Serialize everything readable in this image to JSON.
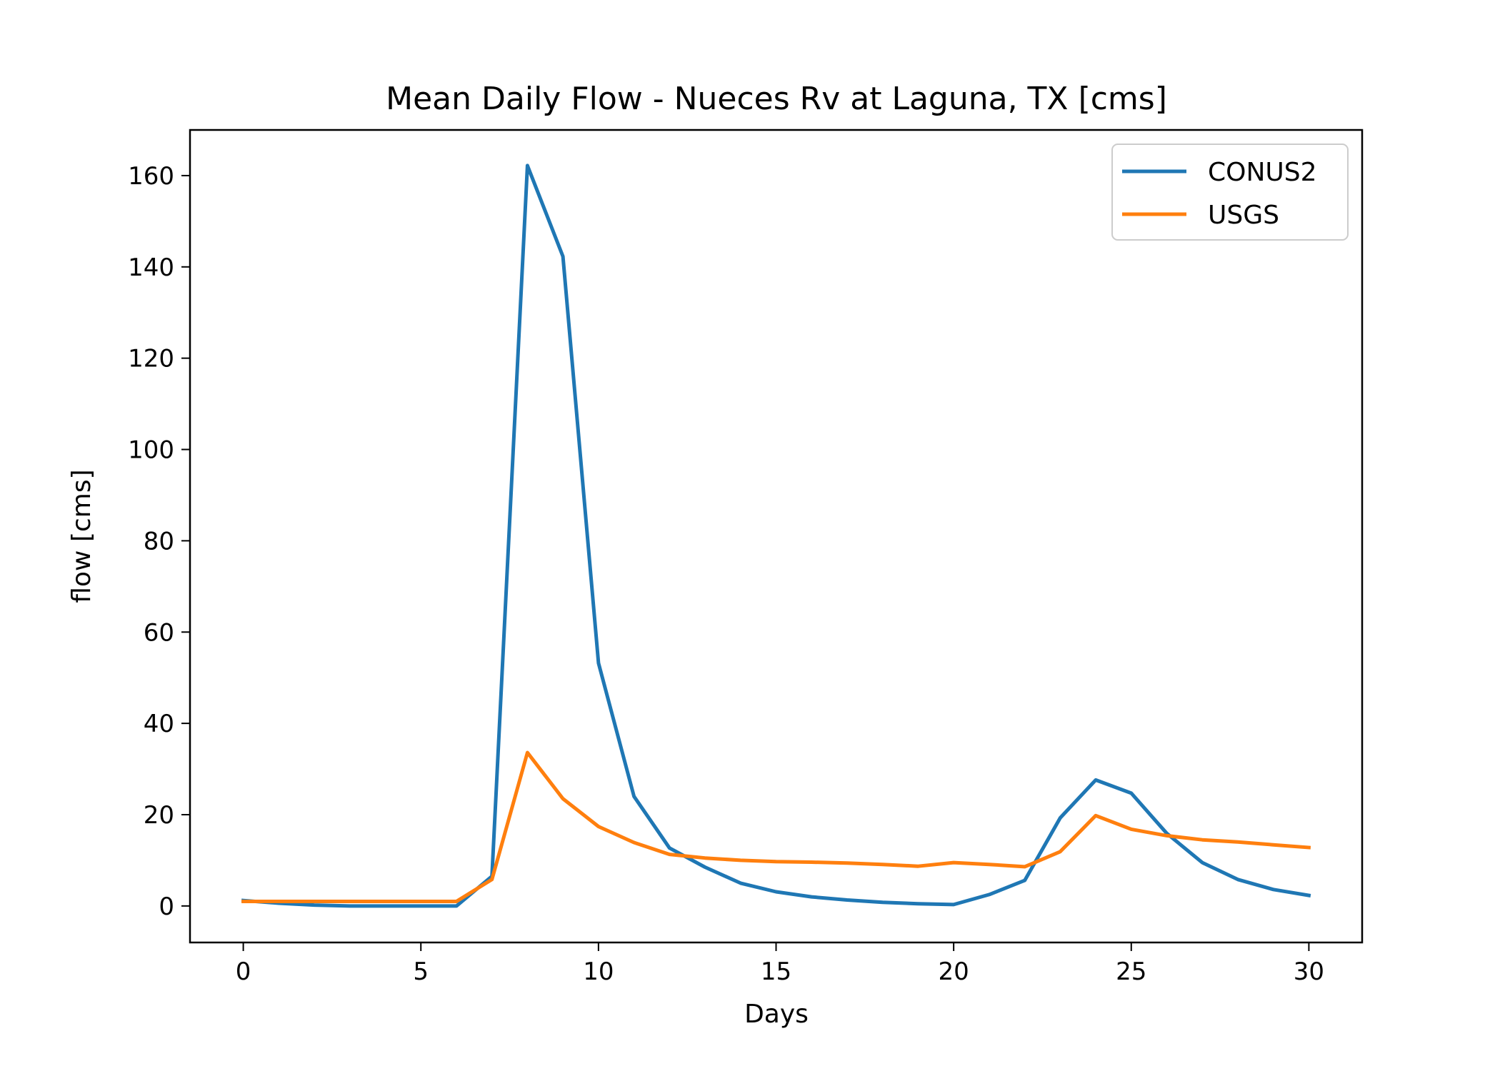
{
  "chart_data": {
    "type": "line",
    "title": "Mean Daily Flow - Nueces Rv at Laguna, TX [cms]",
    "xlabel": "Days",
    "ylabel": "flow [cms]",
    "xlim": [
      -1.5,
      31.5
    ],
    "ylim": [
      -8,
      170
    ],
    "xticks": [
      0,
      5,
      10,
      15,
      20,
      25,
      30
    ],
    "yticks": [
      0,
      20,
      40,
      60,
      80,
      100,
      120,
      140,
      160
    ],
    "grid": false,
    "legend_position": "top-right",
    "x": [
      0,
      1,
      2,
      3,
      4,
      5,
      6,
      7,
      8,
      9,
      10,
      11,
      12,
      13,
      14,
      15,
      16,
      17,
      18,
      19,
      20,
      21,
      22,
      23,
      24,
      25,
      26,
      27,
      28,
      29,
      30
    ],
    "series": [
      {
        "name": "CONUS2",
        "color": "#1f77b4",
        "values": [
          1.2,
          0.6,
          0.2,
          0.0,
          0.0,
          0.0,
          0.0,
          6.5,
          162.2,
          142.3,
          53.2,
          24.0,
          12.7,
          8.5,
          5.0,
          3.1,
          2.0,
          1.3,
          0.8,
          0.5,
          0.3,
          2.5,
          5.6,
          19.3,
          27.6,
          24.7,
          15.9,
          9.5,
          5.8,
          3.6,
          2.3
        ]
      },
      {
        "name": "USGS",
        "color": "#ff7f0e",
        "values": [
          1.0,
          1.0,
          1.0,
          1.0,
          1.0,
          1.0,
          1.0,
          5.8,
          33.6,
          23.5,
          17.4,
          13.9,
          11.3,
          10.5,
          10.0,
          9.7,
          9.6,
          9.4,
          9.1,
          8.7,
          9.5,
          9.1,
          8.6,
          11.9,
          19.8,
          16.8,
          15.4,
          14.5,
          14.0,
          13.4,
          12.8
        ]
      }
    ]
  }
}
